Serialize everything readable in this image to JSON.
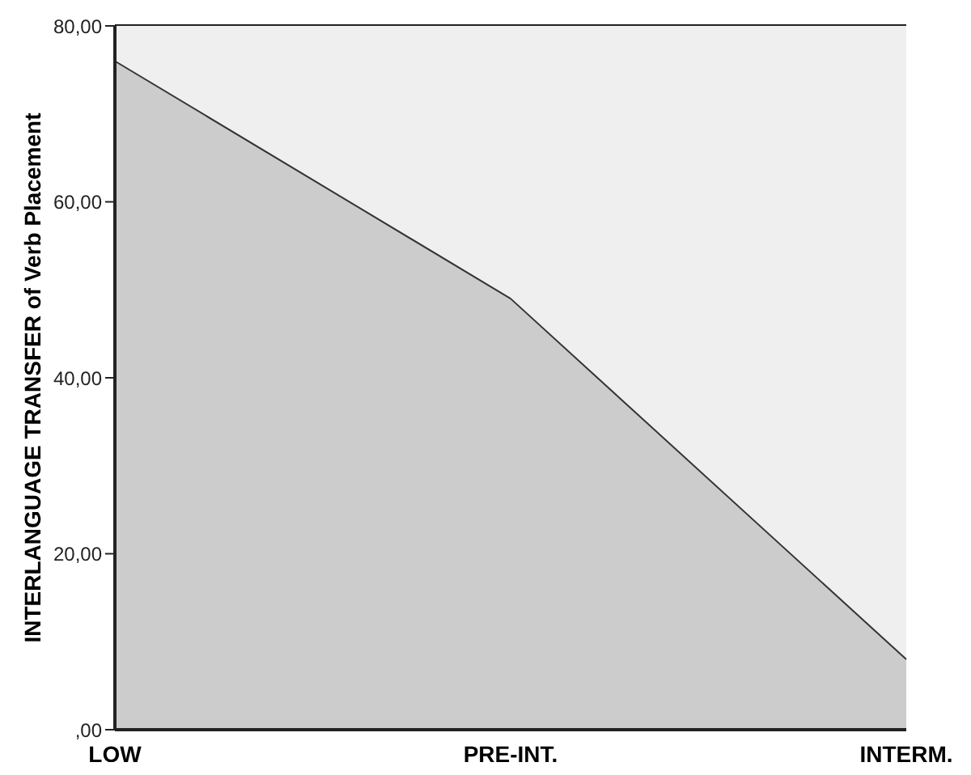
{
  "chart_data": {
    "type": "area",
    "ylabel": "INTERLANGUAGE TRANSFER of Verb Placement",
    "categories": [
      "LOW",
      "PRE-INT.",
      "INTERM."
    ],
    "series": [
      {
        "color": "#cccccc",
        "values": [
          76,
          49,
          8
        ]
      }
    ],
    "ylim": [
      0,
      80
    ],
    "yticks": [
      {
        "value": 0,
        "label": ",00"
      },
      {
        "value": 20,
        "label": "20,00"
      },
      {
        "value": 40,
        "label": "40,00"
      },
      {
        "value": 60,
        "label": "60,00"
      },
      {
        "value": 80,
        "label": "80,00"
      }
    ],
    "grid": false
  }
}
